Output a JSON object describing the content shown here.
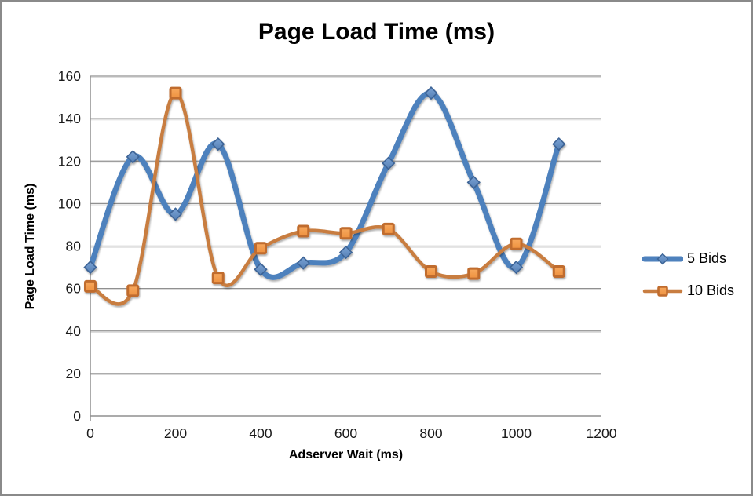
{
  "frame": {
    "background": "#ffffff",
    "border_color": "#8a8a8a"
  },
  "chart_data": {
    "type": "line",
    "title": "Page Load Time (ms)",
    "xlabel": "Adserver Wait (ms)",
    "ylabel": "Page Load Time (ms)",
    "x": [
      0,
      100,
      200,
      300,
      400,
      500,
      600,
      700,
      800,
      900,
      1000,
      1100
    ],
    "series": [
      {
        "name": "5 Bids",
        "values": [
          70,
          122,
          95,
          128,
          69,
          72,
          77,
          119,
          152,
          110,
          70,
          128
        ],
        "line_color": "#4E81BD",
        "line_width": 7,
        "marker": "diamond",
        "marker_fill": "#7AA2D4",
        "marker_fill2": "#5580B5",
        "marker_stroke": "#3C6496",
        "marker_size": 15
      },
      {
        "name": "10 Bids",
        "values": [
          61,
          59,
          152,
          65,
          79,
          87,
          86,
          88,
          68,
          67,
          81,
          68
        ],
        "line_color": "#C87D41",
        "line_width": 4.5,
        "marker": "square",
        "marker_fill": "#F7A95F",
        "marker_fill2": "#EE913F",
        "marker_stroke": "#C06C2E",
        "marker_size": 13
      }
    ],
    "x_ticks": [
      0,
      200,
      400,
      600,
      800,
      1000,
      1200
    ],
    "y_ticks": [
      0,
      20,
      40,
      60,
      80,
      100,
      120,
      140,
      160
    ],
    "xlim": [
      0,
      1200
    ],
    "ylim": [
      0,
      160
    ],
    "grid": "horizontal",
    "smooth_lines": true,
    "legend_position": "right",
    "gridline_color": "#909090",
    "gridline_shadow_color": "#d8d8d8",
    "axis_color": "#8f8f8f",
    "tick_label_color": "#1a1a1a"
  }
}
